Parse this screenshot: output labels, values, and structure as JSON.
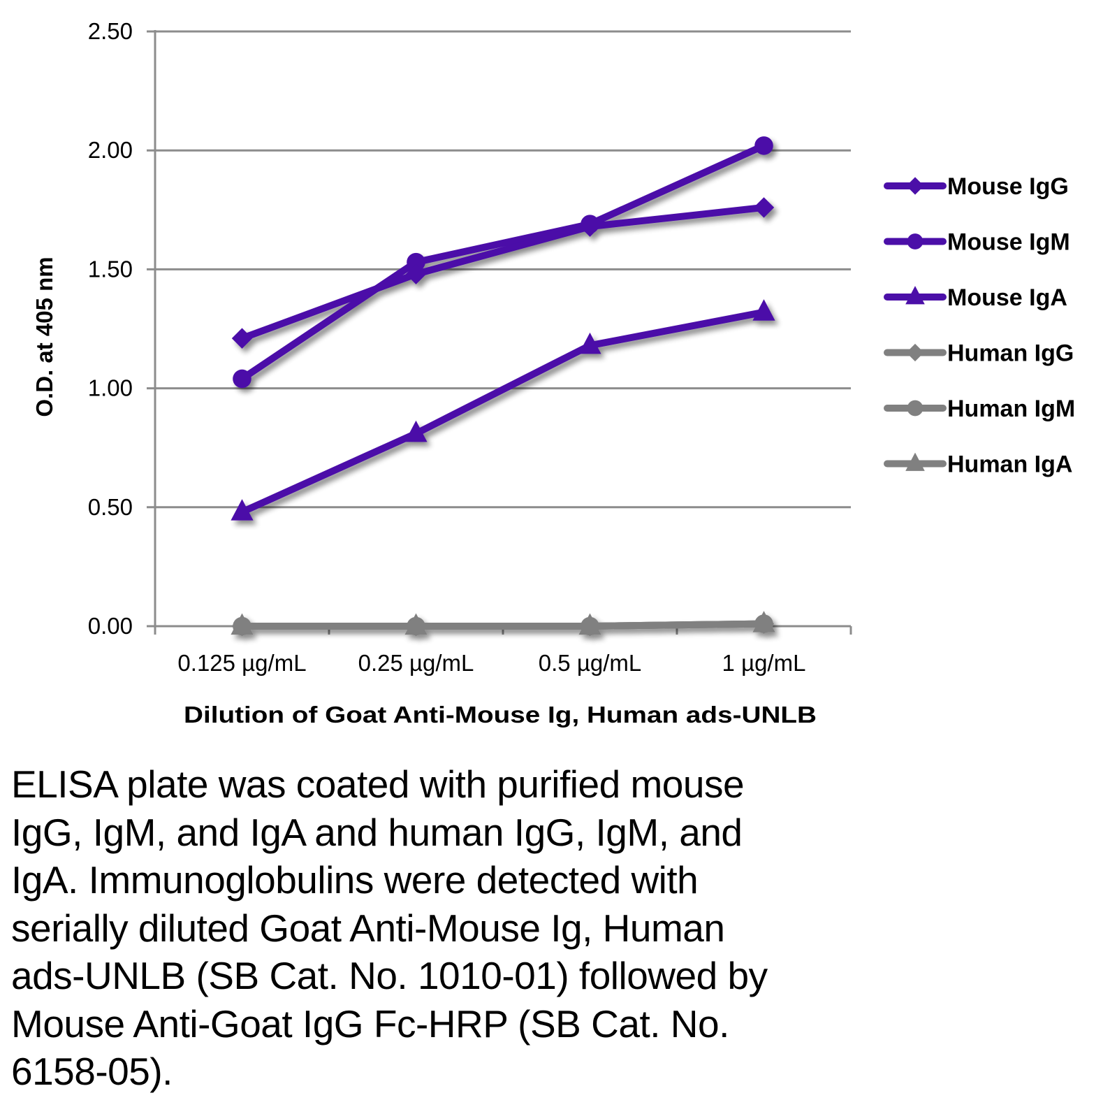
{
  "chart_data": {
    "type": "line",
    "title": "",
    "xlabel": "Dilution of Goat Anti-Mouse Ig, Human ads-UNLB",
    "ylabel": "O.D. at 405 nm",
    "categories": [
      "0.125 µg/mL",
      "0.25 µg/mL",
      "0.5 µg/mL",
      "1 µg/mL"
    ],
    "ylim": [
      0,
      2.5
    ],
    "yticks": [
      "0.00",
      "0.50",
      "1.00",
      "1.50",
      "2.00",
      "2.50"
    ],
    "ytick_values": [
      0,
      0.5,
      1.0,
      1.5,
      2.0,
      2.5
    ],
    "grid": true,
    "legend_position": "right",
    "series": [
      {
        "name": "Mouse IgG",
        "marker": "diamond",
        "color": "#4b0fa8",
        "values": [
          1.21,
          1.48,
          1.68,
          1.76
        ]
      },
      {
        "name": "Mouse IgM",
        "marker": "circle",
        "color": "#4b0fa8",
        "values": [
          1.04,
          1.53,
          1.69,
          2.02
        ]
      },
      {
        "name": "Mouse IgA",
        "marker": "triangle",
        "color": "#4b0fa8",
        "values": [
          0.48,
          0.81,
          1.18,
          1.32
        ]
      },
      {
        "name": "Human IgG",
        "marker": "diamond",
        "color": "#808080",
        "values": [
          0.0,
          0.0,
          0.0,
          0.01
        ]
      },
      {
        "name": "Human IgM",
        "marker": "circle",
        "color": "#808080",
        "values": [
          0.0,
          0.0,
          0.0,
          0.01
        ]
      },
      {
        "name": "Human IgA",
        "marker": "triangle",
        "color": "#808080",
        "values": [
          0.0,
          0.0,
          0.0,
          0.01
        ]
      }
    ]
  },
  "caption": "ELISA plate was coated with purified mouse\nIgG, IgM, and IgA and human IgG, IgM, and\nIgA.  Immunoglobulins were detected with\nserially diluted Goat Anti-Mouse Ig, Human\nads-UNLB (SB Cat. No. 1010-01) followed by\nMouse Anti-Goat IgG Fc-HRP (SB Cat. No.\n6158-05)."
}
